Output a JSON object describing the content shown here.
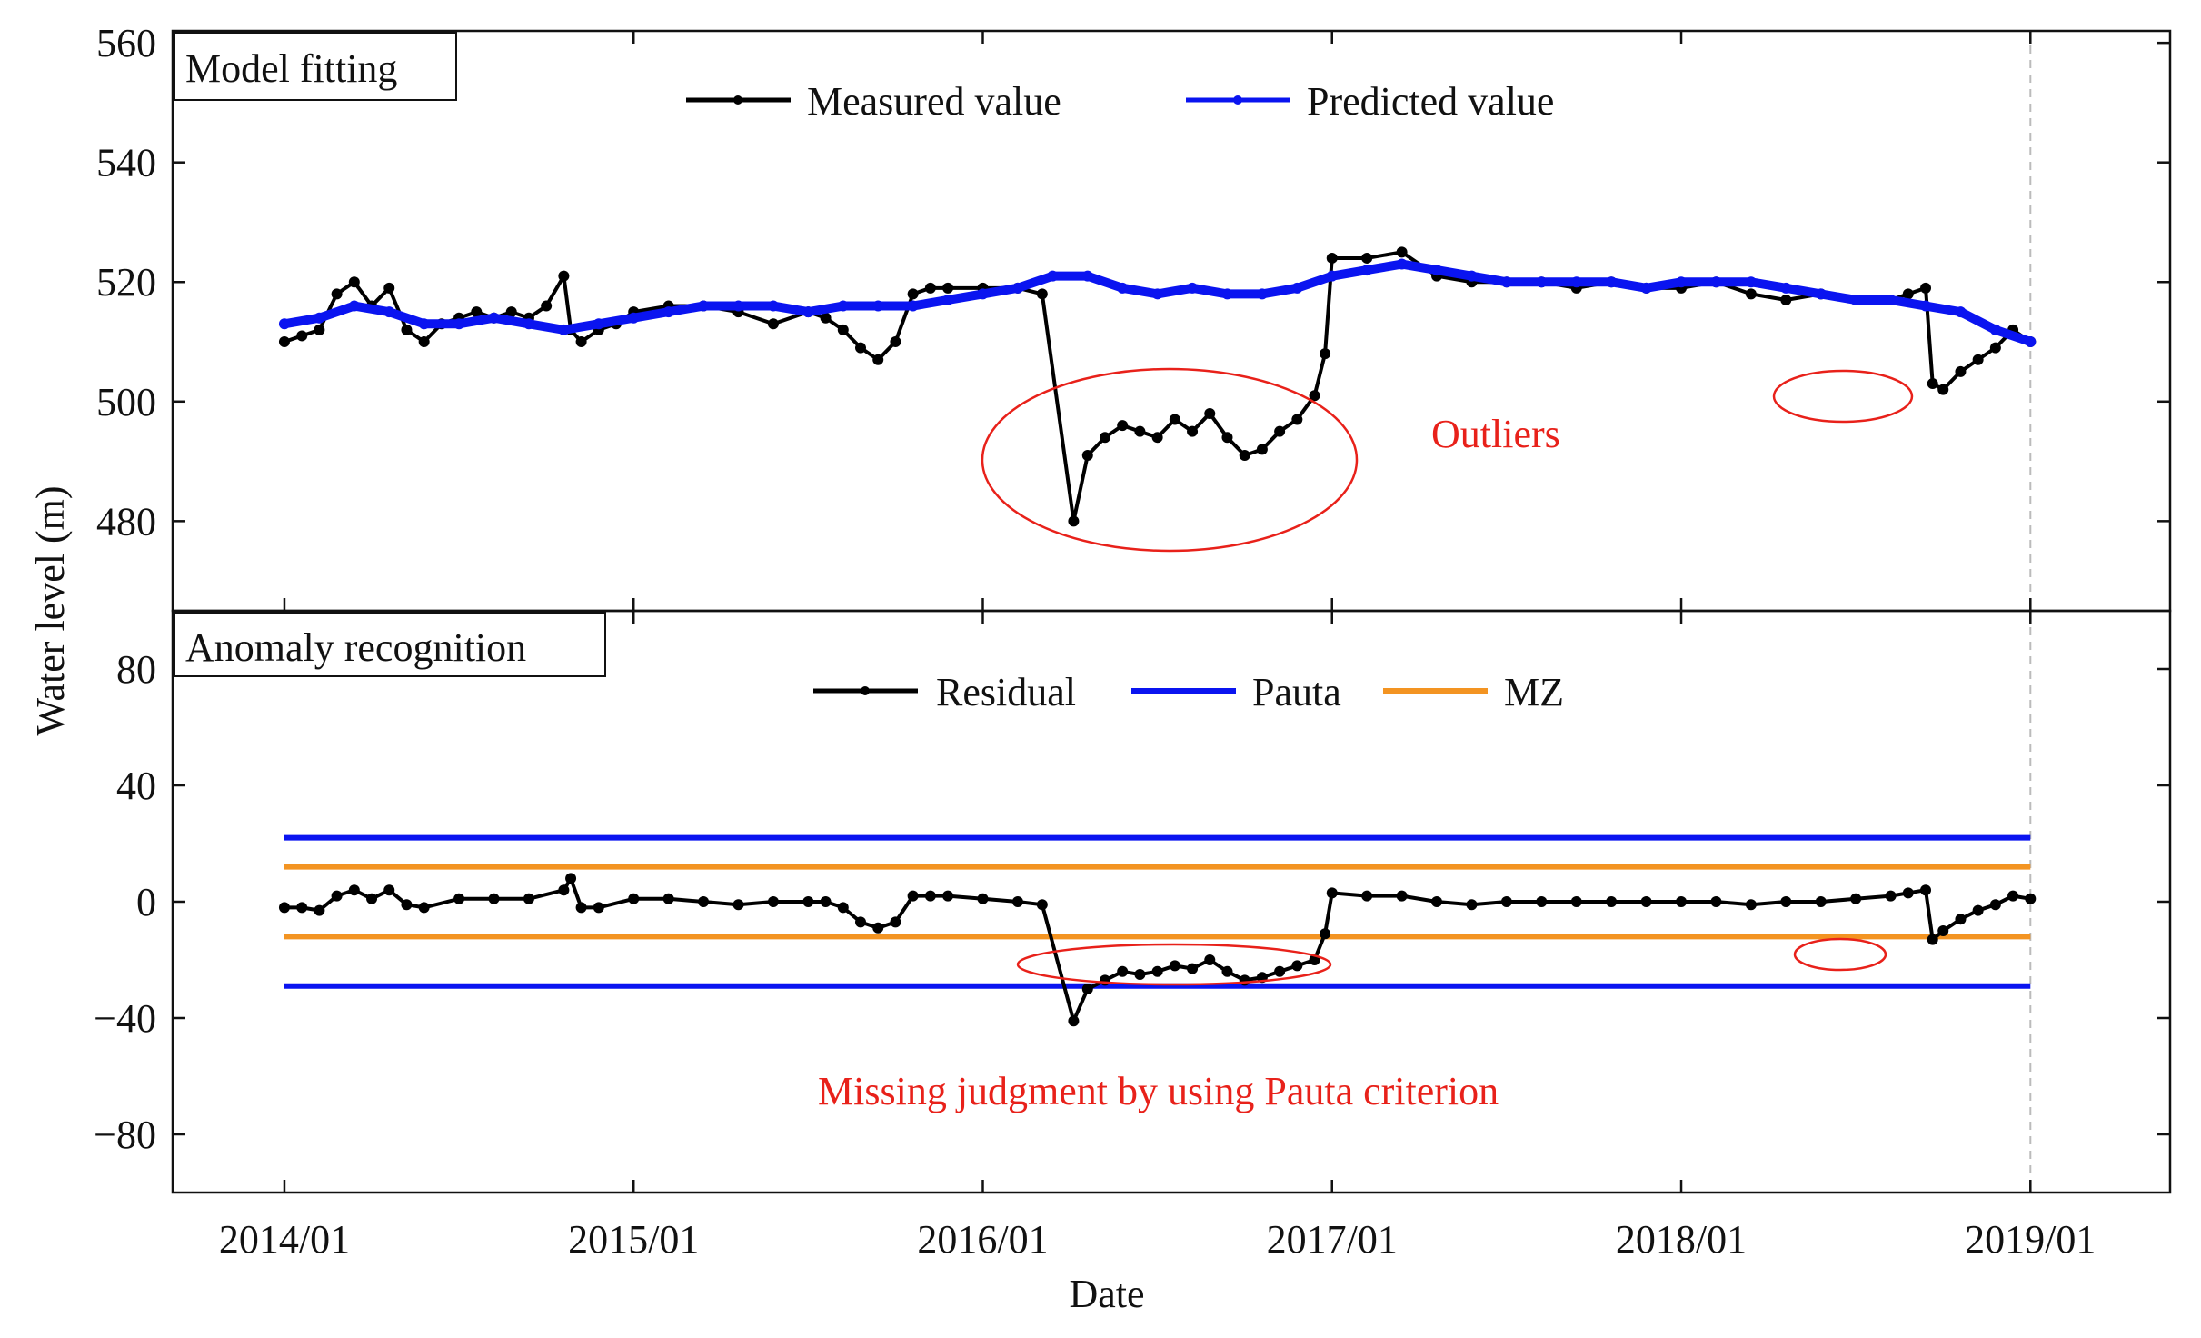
{
  "chart_data": [
    {
      "type": "line",
      "panel": "top",
      "title": "Model fitting",
      "xlabel": "Date",
      "ylabel": "Water level (m)",
      "ylim": [
        465,
        562
      ],
      "yticks": [
        480,
        500,
        520,
        540,
        560
      ],
      "ytick_labels": [
        "480",
        "500",
        "520",
        "540",
        "560"
      ],
      "grid": false,
      "legend_position": "top-center",
      "series": [
        {
          "name": "Measured value",
          "color": "#000000",
          "x": [
            2014.0,
            2014.05,
            2014.1,
            2014.15,
            2014.2,
            2014.25,
            2014.3,
            2014.35,
            2014.4,
            2014.45,
            2014.5,
            2014.55,
            2014.6,
            2014.65,
            2014.7,
            2014.75,
            2014.8,
            2014.82,
            2014.85,
            2014.9,
            2014.95,
            2015.0,
            2015.1,
            2015.2,
            2015.3,
            2015.4,
            2015.5,
            2015.55,
            2015.6,
            2015.65,
            2015.7,
            2015.75,
            2015.8,
            2015.85,
            2015.9,
            2016.0,
            2016.1,
            2016.17,
            2016.26,
            2016.3,
            2016.35,
            2016.4,
            2016.45,
            2016.5,
            2016.55,
            2016.6,
            2016.65,
            2016.7,
            2016.75,
            2016.8,
            2016.85,
            2016.9,
            2016.95,
            2016.98,
            2017.0,
            2017.1,
            2017.2,
            2017.3,
            2017.4,
            2017.5,
            2017.6,
            2017.7,
            2017.8,
            2017.9,
            2018.0,
            2018.1,
            2018.2,
            2018.3,
            2018.4,
            2018.5,
            2018.6,
            2018.65,
            2018.7,
            2018.72,
            2018.75,
            2018.8,
            2018.85,
            2018.9,
            2018.95,
            2019.0
          ],
          "values": [
            510,
            511,
            512,
            518,
            520,
            516,
            519,
            512,
            510,
            513,
            514,
            515,
            514,
            515,
            514,
            516,
            521,
            512,
            510,
            512,
            513,
            515,
            516,
            516,
            515,
            513,
            515,
            514,
            512,
            509,
            507,
            510,
            518,
            519,
            519,
            519,
            519,
            518,
            480,
            491,
            494,
            496,
            495,
            494,
            497,
            495,
            498,
            494,
            491,
            492,
            495,
            497,
            501,
            508,
            524,
            524,
            525,
            521,
            520,
            520,
            520,
            519,
            520,
            519,
            519,
            520,
            518,
            517,
            518,
            517,
            517,
            518,
            519,
            503,
            502,
            505,
            507,
            509,
            512,
            510
          ]
        },
        {
          "name": "Predicted value",
          "color": "#0a14f0",
          "x": [
            2014.0,
            2014.1,
            2014.2,
            2014.3,
            2014.4,
            2014.5,
            2014.6,
            2014.7,
            2014.8,
            2014.9,
            2015.0,
            2015.1,
            2015.2,
            2015.3,
            2015.4,
            2015.5,
            2015.6,
            2015.7,
            2015.8,
            2015.9,
            2016.0,
            2016.1,
            2016.2,
            2016.3,
            2016.4,
            2016.5,
            2016.6,
            2016.7,
            2016.8,
            2016.9,
            2017.0,
            2017.1,
            2017.2,
            2017.3,
            2017.4,
            2017.5,
            2017.6,
            2017.7,
            2017.8,
            2017.9,
            2018.0,
            2018.1,
            2018.2,
            2018.3,
            2018.4,
            2018.5,
            2018.6,
            2018.7,
            2018.8,
            2018.9,
            2019.0
          ],
          "values": [
            513,
            514,
            516,
            515,
            513,
            513,
            514,
            513,
            512,
            513,
            514,
            515,
            516,
            516,
            516,
            515,
            516,
            516,
            516,
            517,
            518,
            519,
            521,
            521,
            519,
            518,
            519,
            518,
            518,
            519,
            521,
            522,
            523,
            522,
            521,
            520,
            520,
            520,
            520,
            519,
            520,
            520,
            520,
            519,
            518,
            517,
            517,
            516,
            515,
            512,
            510
          ]
        }
      ],
      "annotations": [
        {
          "text": "Outliers",
          "color": "#e8211a"
        }
      ]
    },
    {
      "type": "line",
      "panel": "bottom",
      "title": "Anomaly recognition",
      "xlabel": "Date",
      "ylabel": "Water level (m)",
      "ylim": [
        -100,
        100
      ],
      "yticks": [
        -80,
        -40,
        0,
        40,
        80
      ],
      "ytick_labels": [
        "−80",
        "−40",
        "0",
        "40",
        "80"
      ],
      "grid": false,
      "legend_position": "top-center",
      "series": [
        {
          "name": "Residual",
          "color": "#000000",
          "x": [
            2014.0,
            2014.05,
            2014.1,
            2014.15,
            2014.2,
            2014.25,
            2014.3,
            2014.35,
            2014.4,
            2014.5,
            2014.6,
            2014.7,
            2014.8,
            2014.82,
            2014.85,
            2014.9,
            2015.0,
            2015.1,
            2015.2,
            2015.3,
            2015.4,
            2015.5,
            2015.55,
            2015.6,
            2015.65,
            2015.7,
            2015.75,
            2015.8,
            2015.85,
            2015.9,
            2016.0,
            2016.1,
            2016.17,
            2016.26,
            2016.3,
            2016.35,
            2016.4,
            2016.45,
            2016.5,
            2016.55,
            2016.6,
            2016.65,
            2016.7,
            2016.75,
            2016.8,
            2016.85,
            2016.9,
            2016.95,
            2016.98,
            2017.0,
            2017.1,
            2017.2,
            2017.3,
            2017.4,
            2017.5,
            2017.6,
            2017.7,
            2017.8,
            2017.9,
            2018.0,
            2018.1,
            2018.2,
            2018.3,
            2018.4,
            2018.5,
            2018.6,
            2018.65,
            2018.7,
            2018.72,
            2018.75,
            2018.8,
            2018.85,
            2018.9,
            2018.95,
            2019.0
          ],
          "values": [
            -2,
            -2,
            -3,
            2,
            4,
            1,
            4,
            -1,
            -2,
            1,
            1,
            1,
            4,
            8,
            -2,
            -2,
            1,
            1,
            0,
            -1,
            0,
            0,
            0,
            -2,
            -7,
            -9,
            -7,
            2,
            2,
            2,
            1,
            0,
            -1,
            -41,
            -30,
            -27,
            -24,
            -25,
            -24,
            -22,
            -23,
            -20,
            -24,
            -27,
            -26,
            -24,
            -22,
            -20,
            -11,
            3,
            2,
            2,
            0,
            -1,
            0,
            0,
            0,
            0,
            0,
            0,
            0,
            -1,
            0,
            0,
            1,
            2,
            3,
            4,
            -13,
            -10,
            -6,
            -3,
            -1,
            2,
            1
          ]
        },
        {
          "name": "Pauta",
          "color": "#0a14f0",
          "x": [
            2014.0,
            2019.0
          ],
          "upper": [
            22,
            22
          ],
          "lower": [
            -29,
            -29
          ]
        },
        {
          "name": "MZ",
          "color": "#f39422",
          "x": [
            2014.0,
            2019.0
          ],
          "upper": [
            12,
            12
          ],
          "lower": [
            -12,
            -12
          ]
        }
      ],
      "annotations": [
        {
          "text": "Missing judgment by using Pauta criterion",
          "color": "#e8211a"
        }
      ]
    }
  ],
  "x_axis": {
    "range": [
      2013.68,
      2019.4
    ],
    "ticks": [
      2014.0,
      2015.0,
      2016.0,
      2017.0,
      2018.0,
      2019.0
    ],
    "tick_labels": [
      "2014/01",
      "2015/01",
      "2016/01",
      "2017/01",
      "2018/01",
      "2019/01"
    ],
    "reference_line": 2019.0
  },
  "colors": {
    "axis": "#111111",
    "highlight": "#e8211a",
    "reference_line": "#bbbbbb"
  }
}
